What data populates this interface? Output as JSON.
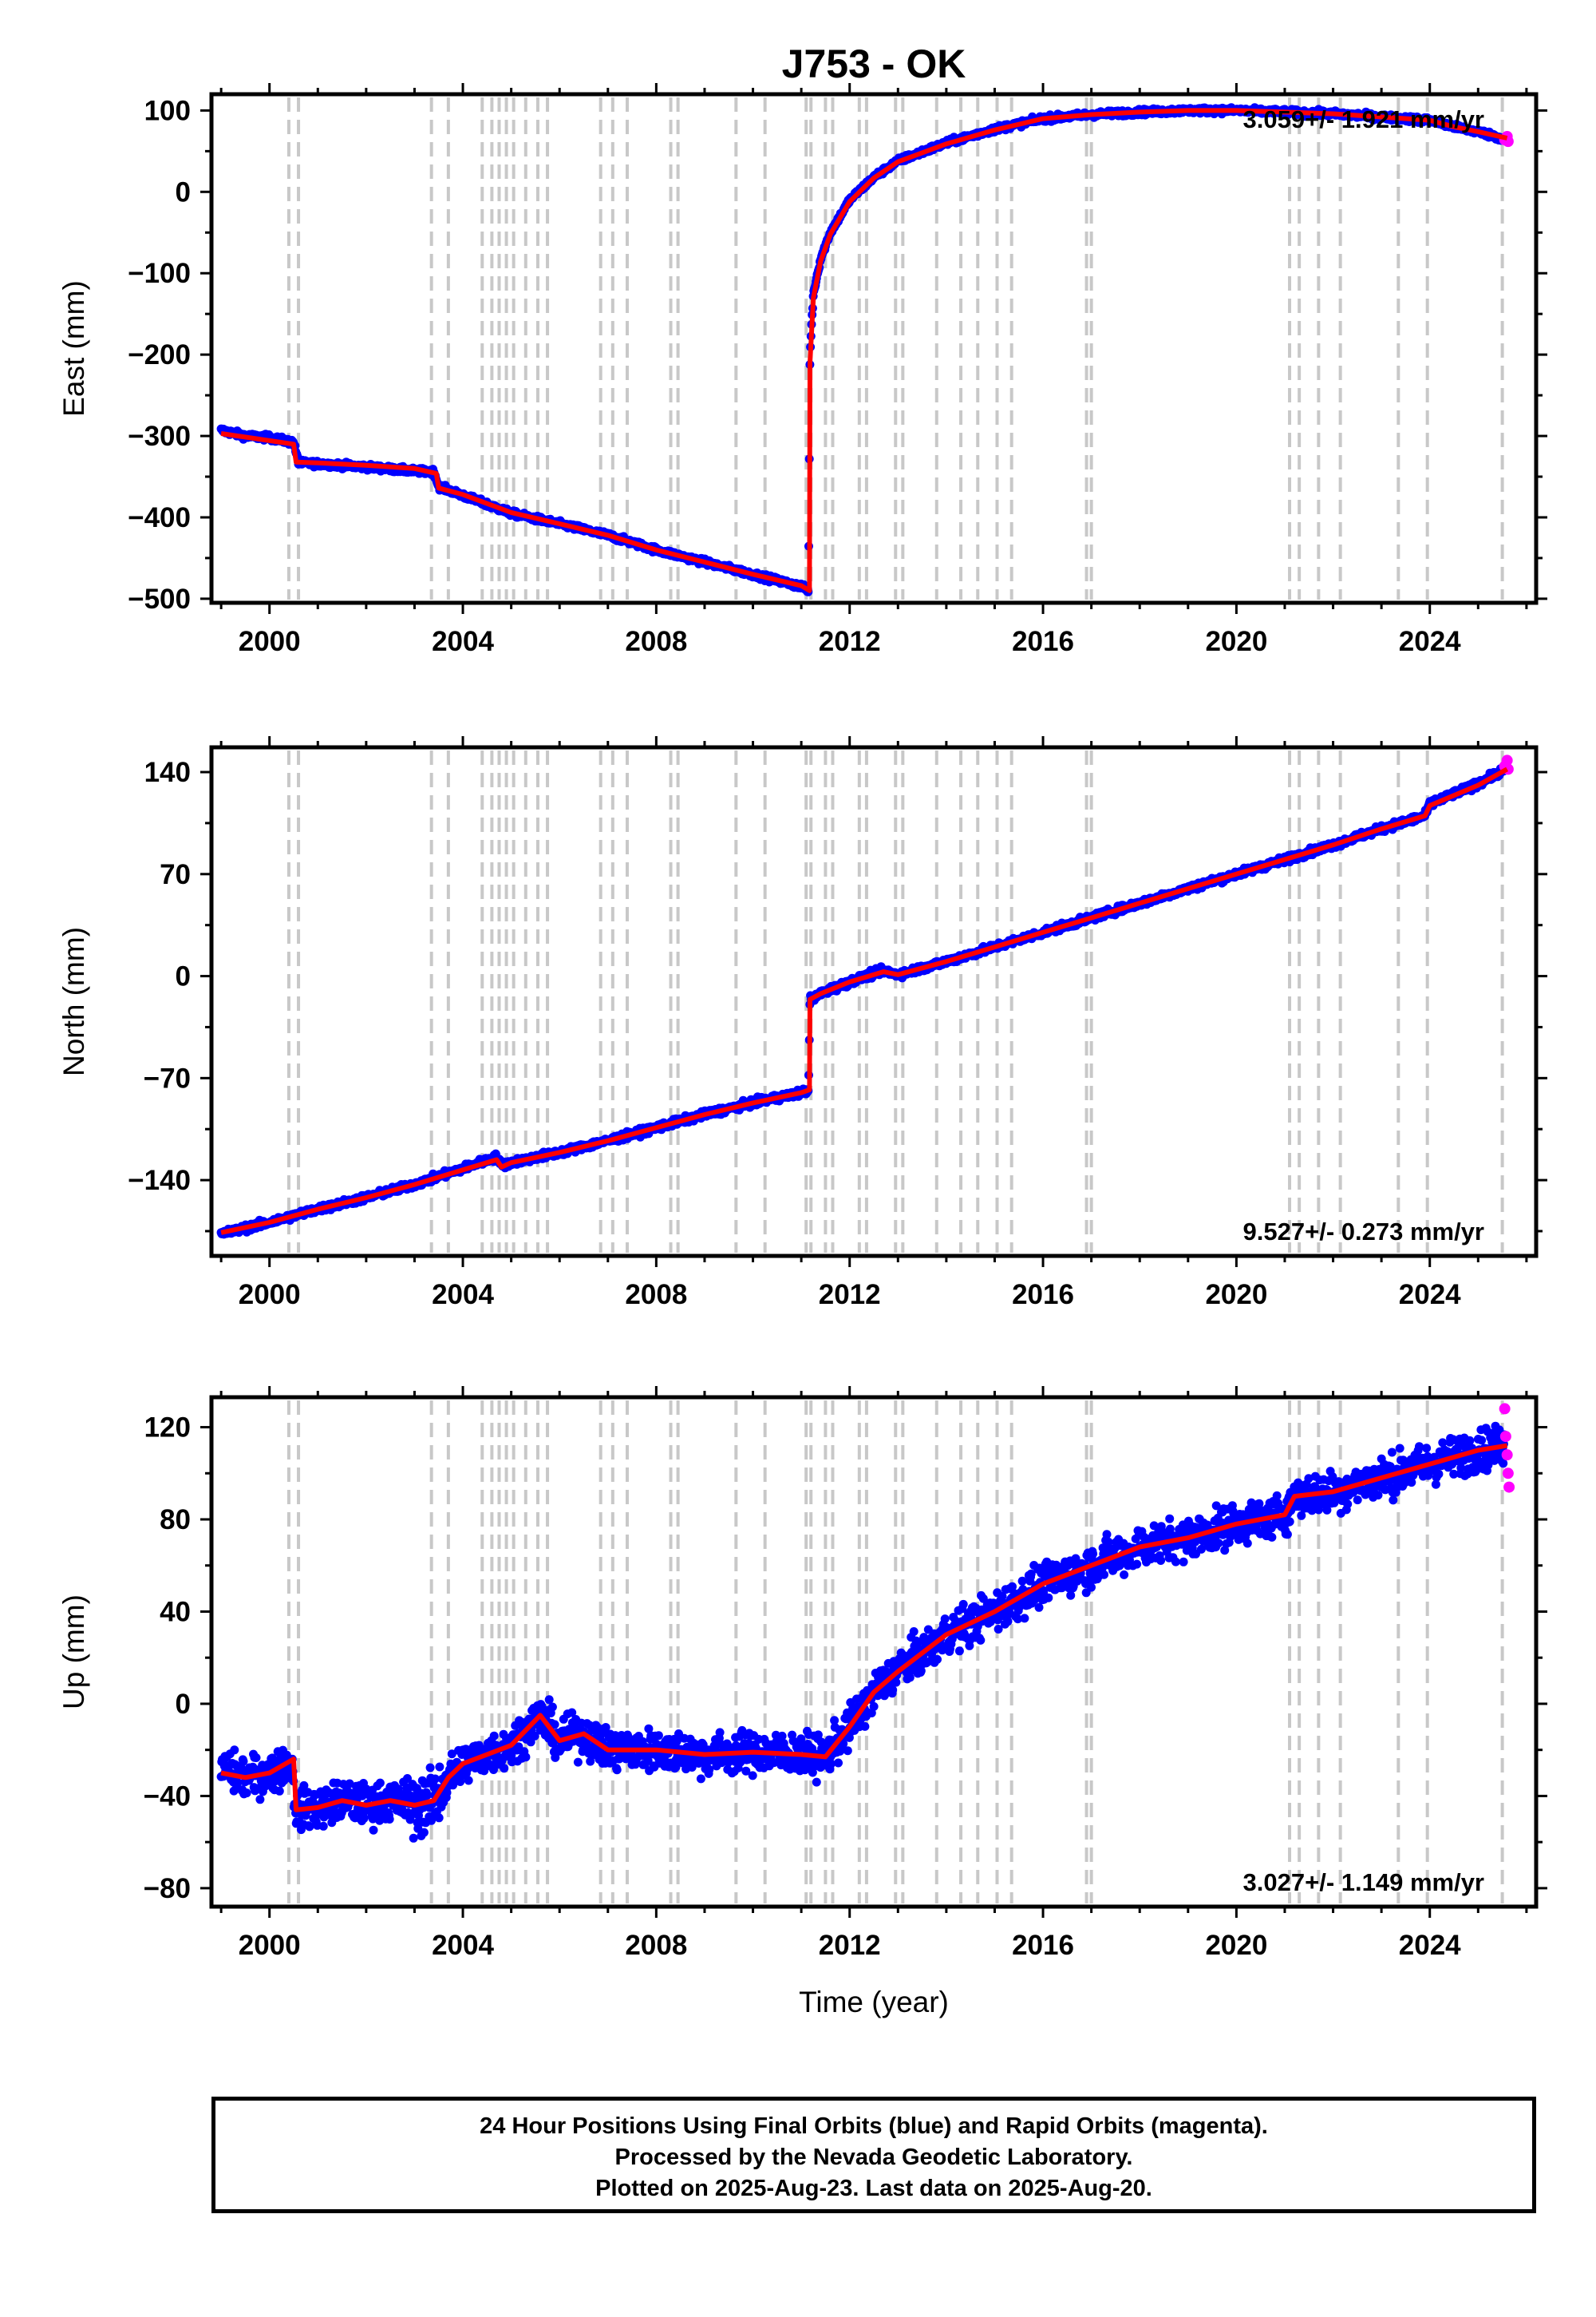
{
  "page": {
    "title": "J753 - OK"
  },
  "colors": {
    "final_orbits": "#0000ff",
    "rapid_orbits": "#ff00ff",
    "model": "#ff0000",
    "event_lines": "#c8c8c8"
  },
  "chart_data": [
    {
      "type": "scatter",
      "title": "J753 - OK",
      "ylabel": "East (mm)",
      "xlabel": "",
      "xlim": [
        1998.8,
        2026.2
      ],
      "ylim": [
        -505,
        120
      ],
      "xticks": [
        2000,
        2004,
        2008,
        2012,
        2016,
        2020,
        2024
      ],
      "yticks": [
        -500,
        -400,
        -300,
        -200,
        -100,
        0,
        100
      ],
      "annotation": "3.059+/- 1.921 mm/yr",
      "annotation_position": "top-right",
      "grid": false,
      "series": [
        {
          "role": "final_orbits",
          "x": [
            1999.0,
            1999.5,
            2000.0,
            2000.5,
            2000.6,
            2001.0,
            2002.0,
            2003.0,
            2003.4,
            2003.5,
            2004.0,
            2005.0,
            2006.0,
            2007.0,
            2008.0,
            2009.0,
            2010.0,
            2011.0,
            2011.15,
            2011.18,
            2011.25,
            2011.4,
            2011.6,
            2012.0,
            2012.5,
            2013.0,
            2014.0,
            2015.0,
            2016.0,
            2017.0,
            2018.0,
            2019.0,
            2020.0,
            2021.0,
            2022.0,
            2023.0,
            2024.0,
            2024.5,
            2025.0,
            2025.55
          ],
          "y": [
            -293,
            -300,
            -302,
            -308,
            -333,
            -334,
            -338,
            -343,
            -344,
            -362,
            -373,
            -395,
            -408,
            -422,
            -440,
            -455,
            -470,
            -485,
            -490,
            -200,
            -125,
            -82,
            -50,
            -10,
            18,
            38,
            60,
            77,
            90,
            95,
            98,
            100,
            100,
            98,
            96,
            92,
            88,
            80,
            74,
            65
          ]
        },
        {
          "role": "rapid_orbits",
          "x": [
            2025.55,
            2025.6,
            2025.62
          ],
          "y": [
            64,
            68,
            62
          ]
        }
      ],
      "model": {
        "x": [
          1999.0,
          2000.5,
          2000.55,
          2001.0,
          2002.0,
          2003.0,
          2003.45,
          2003.5,
          2004.0,
          2005.0,
          2006.0,
          2007.0,
          2008.0,
          2009.0,
          2010.0,
          2011.0,
          2011.17,
          2011.18,
          2011.25,
          2011.4,
          2011.6,
          2012.0,
          2012.5,
          2013.0,
          2014.0,
          2015.0,
          2016.0,
          2017.0,
          2018.0,
          2019.0,
          2020.0,
          2021.0,
          2022.0,
          2023.0,
          2024.0,
          2024.5,
          2025.0,
          2025.6
        ],
        "y": [
          -297,
          -310,
          -332,
          -333,
          -336,
          -340,
          -346,
          -364,
          -372,
          -394,
          -408,
          -422,
          -440,
          -455,
          -470,
          -484,
          -490,
          -210,
          -130,
          -85,
          -52,
          -12,
          17,
          37,
          59,
          76,
          90,
          95,
          98,
          100,
          100,
          98,
          96,
          92,
          88,
          80,
          74,
          66
        ]
      }
    },
    {
      "type": "scatter",
      "ylabel": "North (mm)",
      "xlabel": "",
      "xlim": [
        1998.8,
        2026.2
      ],
      "ylim": [
        -192,
        157
      ],
      "xticks": [
        2000,
        2004,
        2008,
        2012,
        2016,
        2020,
        2024
      ],
      "yticks": [
        -140,
        -70,
        0,
        70,
        140
      ],
      "annotation": "9.527+/- 0.273 mm/yr",
      "annotation_position": "bottom-right",
      "grid": false,
      "series": [
        {
          "role": "final_orbits",
          "x": [
            1999.0,
            2000.0,
            2001.0,
            2002.0,
            2003.0,
            2004.0,
            2004.7,
            2004.8,
            2005.0,
            2006.0,
            2007.0,
            2008.0,
            2009.0,
            2010.0,
            2011.0,
            2011.15,
            2011.18,
            2011.4,
            2012.0,
            2012.7,
            2013.0,
            2014.0,
            2015.0,
            2016.0,
            2017.0,
            2018.0,
            2019.0,
            2020.0,
            2021.0,
            2022.0,
            2023.0,
            2023.9,
            2024.0,
            2025.0,
            2025.55
          ],
          "y": [
            -177,
            -169,
            -160,
            -152,
            -143,
            -132,
            -124,
            -130,
            -128,
            -121,
            -113,
            -104,
            -95,
            -87,
            -80,
            -78,
            -16,
            -12,
            -4,
            4,
            1,
            10,
            20,
            30,
            40,
            50,
            60,
            70,
            80,
            90,
            101,
            110,
            118,
            132,
            142
          ]
        },
        {
          "role": "rapid_orbits",
          "x": [
            2025.55,
            2025.6,
            2025.62
          ],
          "y": [
            144,
            148,
            142
          ]
        }
      ],
      "model": {
        "x": [
          1999.0,
          2000.0,
          2001.0,
          2002.0,
          2003.0,
          2004.0,
          2004.7,
          2004.8,
          2005.0,
          2006.0,
          2007.0,
          2008.0,
          2009.0,
          2010.0,
          2011.0,
          2011.17,
          2011.18,
          2011.4,
          2012.0,
          2012.7,
          2013.0,
          2014.0,
          2015.0,
          2016.0,
          2017.0,
          2018.0,
          2019.0,
          2020.0,
          2021.0,
          2022.0,
          2023.0,
          2023.9,
          2024.0,
          2025.0,
          2025.6
        ],
        "y": [
          -176,
          -169,
          -160,
          -152,
          -143,
          -133,
          -126,
          -131,
          -128,
          -121,
          -113,
          -104,
          -95,
          -87,
          -80,
          -78,
          -16,
          -12,
          -4,
          3,
          1,
          10,
          20,
          30,
          40,
          50,
          60,
          70,
          80,
          90,
          101,
          110,
          117,
          131,
          142
        ]
      }
    },
    {
      "type": "scatter",
      "ylabel": "Up (mm)",
      "xlabel": "Time (year)",
      "xlim": [
        1998.8,
        2026.2
      ],
      "ylim": [
        -88,
        133
      ],
      "xticks": [
        2000,
        2004,
        2008,
        2012,
        2016,
        2020,
        2024
      ],
      "yticks": [
        -80,
        -40,
        0,
        40,
        80,
        120
      ],
      "annotation": "3.027+/- 1.149 mm/yr",
      "annotation_position": "bottom-right",
      "grid": false,
      "series": [
        {
          "role": "final_orbits",
          "x": [
            1999.0,
            1999.5,
            2000.0,
            2000.45,
            2000.55,
            2001.0,
            2001.5,
            2002.0,
            2002.5,
            2003.0,
            2003.4,
            2003.7,
            2004.0,
            2004.5,
            2005.0,
            2005.6,
            2006.0,
            2006.5,
            2007.0,
            2008.0,
            2009.0,
            2010.0,
            2011.0,
            2011.5,
            2012.0,
            2012.5,
            2013.0,
            2013.5,
            2014.0,
            2015.0,
            2016.0,
            2017.0,
            2018.0,
            2019.0,
            2020.0,
            2021.0,
            2021.2,
            2022.0,
            2023.0,
            2024.0,
            2025.0,
            2025.55
          ],
          "y": [
            -28,
            -32,
            -30,
            -26,
            -46,
            -45,
            -42,
            -44,
            -42,
            -44,
            -42,
            -32,
            -26,
            -22,
            -18,
            -5,
            -16,
            -13,
            -20,
            -20,
            -22,
            -21,
            -22,
            -23,
            -10,
            5,
            15,
            22,
            30,
            40,
            52,
            60,
            68,
            72,
            78,
            82,
            90,
            92,
            98,
            104,
            110,
            112
          ]
        },
        {
          "role": "rapid_orbits",
          "x": [
            2025.55,
            2025.57,
            2025.6,
            2025.62,
            2025.64
          ],
          "y": [
            128,
            116,
            108,
            100,
            94
          ]
        }
      ],
      "model": {
        "x": [
          1999.0,
          1999.5,
          2000.0,
          2000.5,
          2000.55,
          2001.0,
          2001.5,
          2002.0,
          2002.5,
          2003.0,
          2003.4,
          2003.7,
          2004.0,
          2004.5,
          2005.0,
          2005.6,
          2006.0,
          2006.5,
          2007.0,
          2008.0,
          2009.0,
          2010.0,
          2011.0,
          2011.5,
          2012.0,
          2012.5,
          2013.0,
          2013.5,
          2014.0,
          2015.0,
          2016.0,
          2017.0,
          2018.0,
          2019.0,
          2020.0,
          2021.0,
          2021.2,
          2022.0,
          2023.0,
          2024.0,
          2025.0,
          2025.6
        ],
        "y": [
          -30,
          -32,
          -30,
          -24,
          -46,
          -45,
          -42,
          -44,
          -42,
          -44,
          -42,
          -32,
          -26,
          -22,
          -18,
          -5,
          -16,
          -13,
          -20,
          -20,
          -22,
          -21,
          -22,
          -23,
          -10,
          5,
          14,
          22,
          30,
          40,
          52,
          60,
          68,
          72,
          78,
          82,
          90,
          92,
          98,
          104,
          110,
          112
        ]
      }
    }
  ],
  "event_lines": [
    2000.4,
    2000.6,
    2003.35,
    2003.7,
    2004.4,
    2004.6,
    2004.75,
    2004.9,
    2005.05,
    2005.3,
    2005.55,
    2005.75,
    2006.85,
    2007.1,
    2007.4,
    2008.3,
    2008.45,
    2009.65,
    2010.25,
    2011.1,
    2011.2,
    2011.5,
    2011.65,
    2012.2,
    2012.35,
    2012.95,
    2013.1,
    2013.8,
    2014.3,
    2014.65,
    2015.05,
    2015.35,
    2016.9,
    2017.0,
    2021.1,
    2021.3,
    2021.7,
    2022.15,
    2023.35,
    2023.95,
    2025.5
  ],
  "caption": {
    "line1": "24 Hour Positions Using Final Orbits (blue) and Rapid Orbits (magenta).",
    "line2": "Processed by the Nevada Geodetic Laboratory.",
    "line3": "Plotted on 2025-Aug-23. Last data on 2025-Aug-20."
  }
}
